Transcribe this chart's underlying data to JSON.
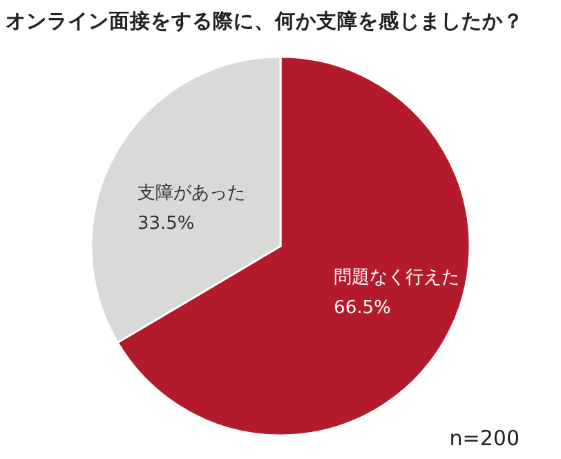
{
  "chart_data": {
    "type": "pie",
    "title": "オンライン面接をする際に、何か支障を感じましたか？",
    "categories": [
      "問題なく行えた",
      "支障があった"
    ],
    "values": [
      66.5,
      33.5
    ],
    "value_labels": [
      "66.5%",
      "33.5%"
    ],
    "colors": [
      "#b31b2c",
      "#d9d9d8"
    ],
    "annotations": [
      "n=200"
    ]
  }
}
